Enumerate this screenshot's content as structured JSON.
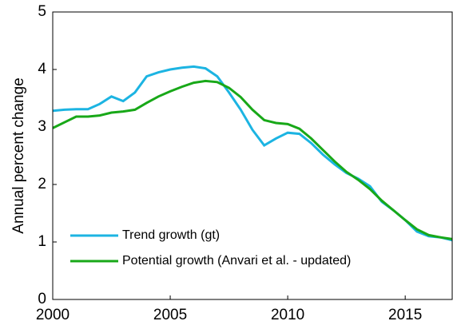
{
  "chart_data": {
    "type": "line",
    "ylabel": "Annual percent change",
    "x": [
      2000,
      2000.5,
      2001,
      2001.5,
      2002,
      2002.5,
      2003,
      2003.5,
      2004,
      2004.5,
      2005,
      2005.5,
      2006,
      2006.5,
      2007,
      2007.5,
      2008,
      2008.5,
      2009,
      2009.5,
      2010,
      2010.5,
      2011,
      2011.5,
      2012,
      2012.5,
      2013,
      2013.5,
      2014,
      2014.5,
      2015,
      2015.5,
      2016,
      2016.5,
      2017
    ],
    "series": [
      {
        "name": "Trend growth (gt)",
        "color": "#1cb4e2",
        "values": [
          3.28,
          3.3,
          3.31,
          3.31,
          3.4,
          3.53,
          3.45,
          3.6,
          3.88,
          3.95,
          4.0,
          4.03,
          4.05,
          4.02,
          3.88,
          3.6,
          3.3,
          2.95,
          2.68,
          2.8,
          2.9,
          2.88,
          2.72,
          2.52,
          2.35,
          2.2,
          2.1,
          1.97,
          1.7,
          1.55,
          1.38,
          1.18,
          1.1,
          1.08,
          1.03
        ]
      },
      {
        "name": "Potential growth (Anvari et al.  - updated)",
        "color": "#18a818",
        "values": [
          2.98,
          3.08,
          3.18,
          3.18,
          3.2,
          3.25,
          3.27,
          3.3,
          3.42,
          3.53,
          3.62,
          3.7,
          3.77,
          3.8,
          3.78,
          3.68,
          3.52,
          3.3,
          3.12,
          3.07,
          3.05,
          2.97,
          2.8,
          2.6,
          2.4,
          2.22,
          2.08,
          1.92,
          1.72,
          1.55,
          1.38,
          1.22,
          1.12,
          1.08,
          1.05
        ]
      }
    ],
    "xlim": [
      2000,
      2017
    ],
    "xticks": [
      2000,
      2005,
      2010,
      2015
    ],
    "ylim": [
      0,
      5
    ],
    "yticks": [
      0,
      1,
      2,
      3,
      4,
      5
    ],
    "legend": "lower left"
  }
}
